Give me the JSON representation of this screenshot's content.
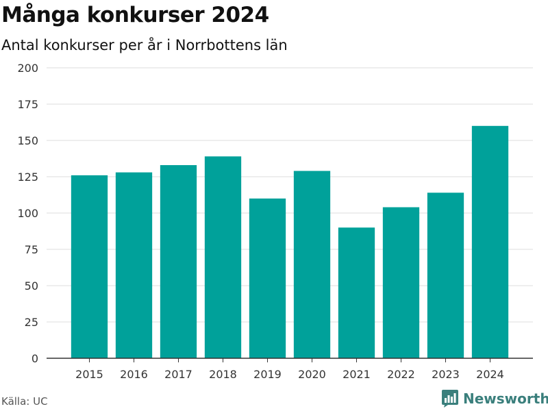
{
  "header": {
    "title": "Många konkurser 2024",
    "subtitle": "Antal konkurser per år i Norrbottens län"
  },
  "footer": {
    "source": "Källa: UC",
    "brand": "Newsworthy",
    "brand_icon": "bar-chart-icon"
  },
  "colors": {
    "bar": "#00a19a",
    "grid": "#dddddd",
    "axis": "#333333",
    "brand": "#3a7f7c"
  },
  "chart_data": {
    "type": "bar",
    "title": "Många konkurser 2024",
    "subtitle": "Antal konkurser per år i Norrbottens län",
    "xlabel": "",
    "ylabel": "",
    "categories": [
      "2015",
      "2016",
      "2017",
      "2018",
      "2019",
      "2020",
      "2021",
      "2022",
      "2023",
      "2024"
    ],
    "values": [
      126,
      128,
      133,
      139,
      110,
      129,
      90,
      104,
      114,
      160
    ],
    "ylim": [
      0,
      200
    ],
    "yticks": [
      0,
      25,
      50,
      75,
      100,
      125,
      150,
      175,
      200
    ],
    "grid": true,
    "legend": "none"
  }
}
